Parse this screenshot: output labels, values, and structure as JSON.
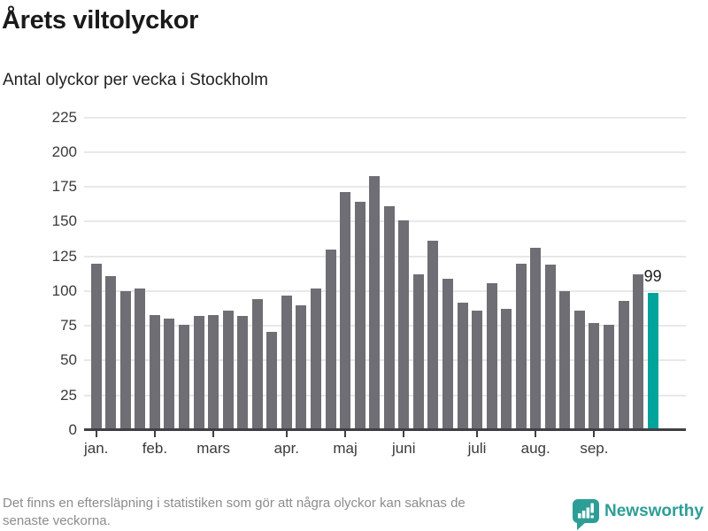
{
  "header": {
    "title": "Årets viltolyckor",
    "subtitle": "Antal olyckor per vecka i Stockholm"
  },
  "chart_data": {
    "type": "bar",
    "title": "Årets viltolyckor",
    "subtitle": "Antal olyckor per vecka i Stockholm",
    "xlabel": "",
    "ylabel": "",
    "ylim": [
      0,
      235
    ],
    "y_ticks": [
      0,
      25,
      50,
      75,
      100,
      125,
      150,
      175,
      200,
      225
    ],
    "grid": true,
    "categories_note": "one bar per week, jan-sep",
    "values": [
      120,
      111,
      100,
      102,
      83,
      80,
      76,
      82,
      83,
      86,
      82,
      94,
      71,
      97,
      90,
      102,
      130,
      171,
      164,
      183,
      161,
      151,
      112,
      136,
      109,
      92,
      86,
      106,
      87,
      120,
      131,
      119,
      100,
      86,
      77,
      76,
      93,
      112,
      99
    ],
    "month_labels": [
      "jan.",
      "feb.",
      "mars",
      "apr.",
      "maj",
      "juni",
      "juli",
      "aug.",
      "sep."
    ],
    "month_week_index": [
      0,
      4,
      8,
      13,
      17,
      21,
      26,
      30,
      34
    ],
    "highlight_index": 38,
    "highlight_label": "99",
    "legend": null,
    "colors": {
      "bar": "#6e6e74",
      "highlight": "#00a49b",
      "grid": "#e8e8e8",
      "axis": "#3f3f44",
      "tick_label": "#3a3a3a"
    }
  },
  "footer": {
    "note_line1": "Det finns en eftersläpning i statistiken som gör att några olyckor kan saknas de",
    "note_line2": "senaste veckorna.",
    "brand": "Newsworthy"
  }
}
